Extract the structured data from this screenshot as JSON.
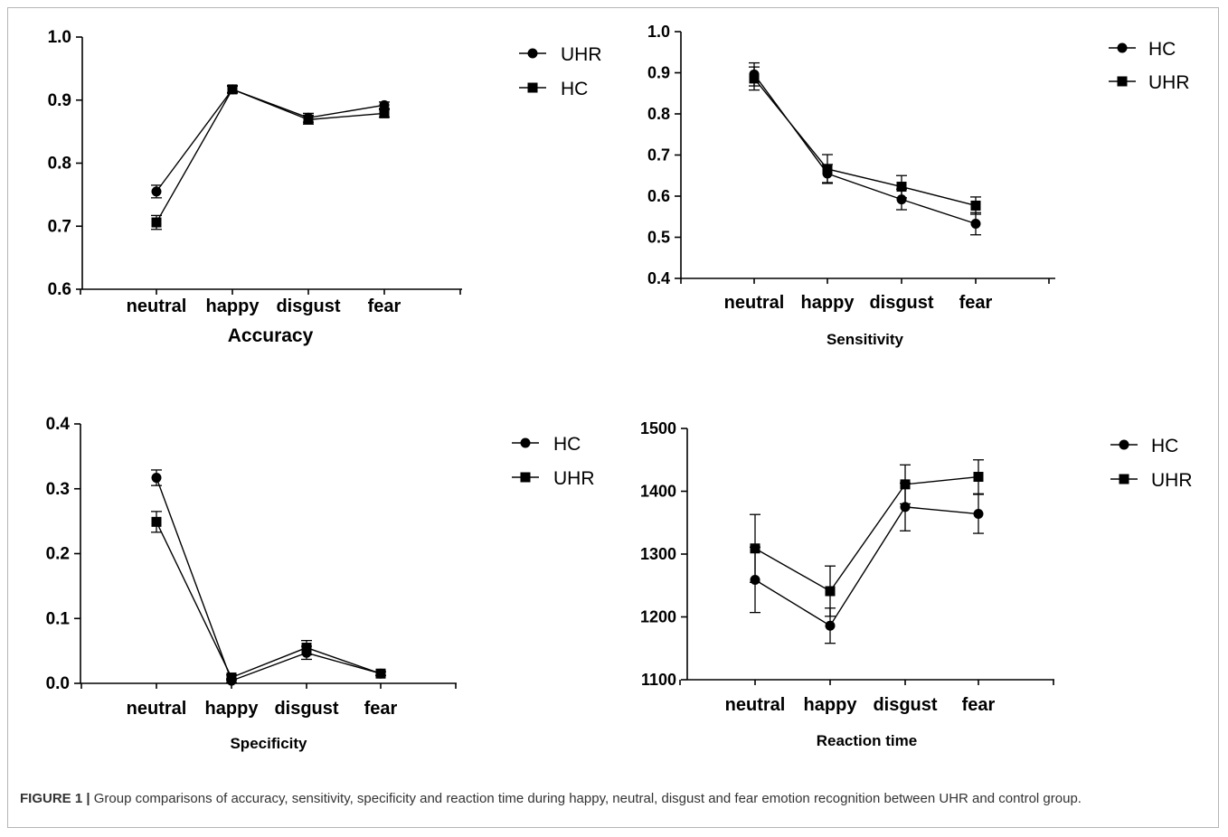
{
  "caption": {
    "label": "FIGURE 1 |",
    "text": "Group comparisons of accuracy, sensitivity, specificity and reaction time during happy, neutral, disgust and fear emotion recognition between UHR and control group."
  },
  "colors": {
    "ink": "#000000",
    "frame": "#b5b5b5",
    "caption": "#333333"
  },
  "chart_data": [
    {
      "type": "line",
      "xlabel": "Accuracy",
      "ylabel": "",
      "categories": [
        "neutral",
        "happy",
        "disgust",
        "fear"
      ],
      "ylim": [
        0.6,
        1.0
      ],
      "yticks": [
        "0.6",
        "0.7",
        "0.8",
        "0.9",
        "1.0"
      ],
      "legend_position": "top-right",
      "series": [
        {
          "name": "UHR",
          "marker": "circle",
          "values": [
            0.755,
            0.917,
            0.872,
            0.892
          ],
          "err": [
            0.01,
            0.006,
            0.007,
            0.005
          ]
        },
        {
          "name": "HC",
          "marker": "square",
          "values": [
            0.706,
            0.917,
            0.869,
            0.879
          ],
          "err": [
            0.011,
            0.005,
            0.007,
            0.006
          ]
        }
      ]
    },
    {
      "type": "line",
      "xlabel": "Sensitivity",
      "ylabel": "",
      "categories": [
        "neutral",
        "happy",
        "disgust",
        "fear"
      ],
      "ylim": [
        0.4,
        1.0
      ],
      "yticks": [
        "0.4",
        "0.5",
        "0.6",
        "0.7",
        "0.8",
        "0.9",
        "1.0"
      ],
      "legend_position": "top-right",
      "series": [
        {
          "name": "HC",
          "marker": "circle",
          "values": [
            0.896,
            0.655,
            0.592,
            0.533
          ],
          "err": [
            0.028,
            0.022,
            0.025,
            0.027
          ]
        },
        {
          "name": "UHR",
          "marker": "square",
          "values": [
            0.886,
            0.666,
            0.623,
            0.577
          ],
          "err": [
            0.028,
            0.035,
            0.027,
            0.021
          ]
        }
      ]
    },
    {
      "type": "line",
      "xlabel": "Specificity",
      "ylabel": "",
      "categories": [
        "neutral",
        "happy",
        "disgust",
        "fear"
      ],
      "ylim": [
        0.0,
        0.4
      ],
      "yticks": [
        "0.0",
        "0.1",
        "0.2",
        "0.3",
        "0.4"
      ],
      "legend_position": "top-right",
      "series": [
        {
          "name": "HC",
          "marker": "circle",
          "values": [
            0.317,
            0.004,
            0.047,
            0.015
          ],
          "err": [
            0.012,
            0.003,
            0.01,
            0.003
          ]
        },
        {
          "name": "UHR",
          "marker": "square",
          "values": [
            0.249,
            0.009,
            0.055,
            0.015
          ],
          "err": [
            0.016,
            0.004,
            0.011,
            0.003
          ]
        }
      ]
    },
    {
      "type": "line",
      "xlabel": "Reaction time",
      "ylabel": "",
      "categories": [
        "neutral",
        "happy",
        "disgust",
        "fear"
      ],
      "ylim": [
        1100,
        1500
      ],
      "yticks": [
        "1100",
        "1200",
        "1300",
        "1400",
        "1500"
      ],
      "legend_position": "top-right",
      "series": [
        {
          "name": "HC",
          "marker": "circle",
          "values": [
            1259,
            1186,
            1375,
            1364
          ],
          "err": [
            52,
            28,
            38,
            31
          ]
        },
        {
          "name": "UHR",
          "marker": "square",
          "values": [
            1309,
            1241,
            1411,
            1423
          ],
          "err": [
            54,
            40,
            31,
            27
          ]
        }
      ]
    }
  ]
}
